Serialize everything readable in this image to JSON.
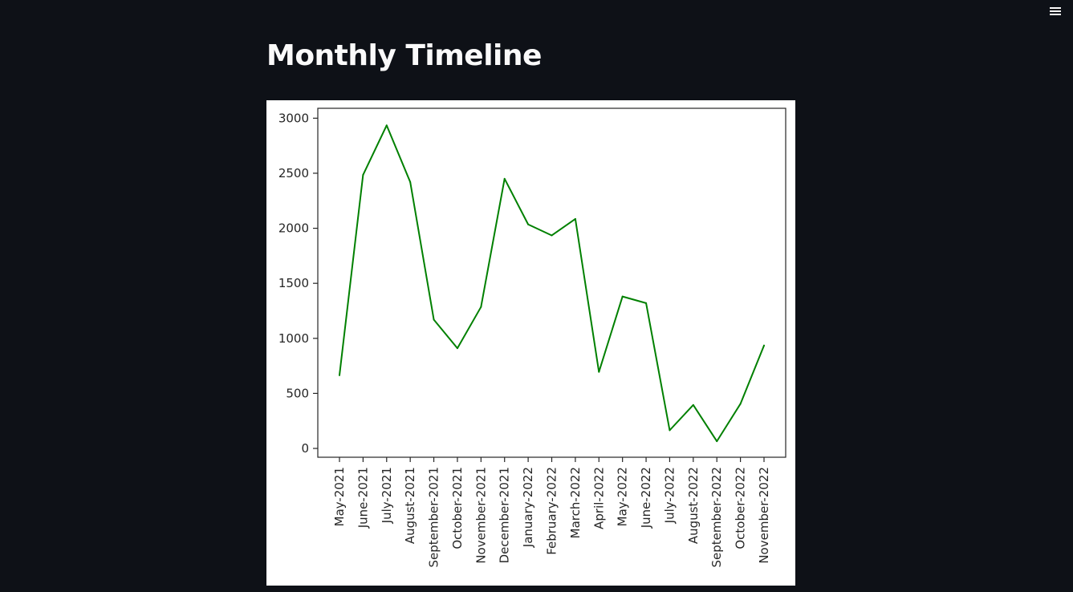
{
  "header": {
    "title": "Monthly Timeline",
    "menu_icon": "hamburger-menu-icon"
  },
  "colors": {
    "background": "#0e1117",
    "title": "#fafafa",
    "line": "#008000",
    "card": "#ffffff"
  },
  "chart_data": {
    "type": "line",
    "title": "",
    "xlabel": "",
    "ylabel": "",
    "x": [
      "May-2021",
      "June-2021",
      "July-2021",
      "August-2021",
      "September-2021",
      "October-2021",
      "November-2021",
      "December-2021",
      "January-2022",
      "February-2022",
      "March-2022",
      "April-2022",
      "May-2022",
      "June-2022",
      "July-2022",
      "August-2022",
      "September-2022",
      "October-2022",
      "November-2022"
    ],
    "series": [
      {
        "color": "#008000",
        "values": [
          665,
          2485,
          2935,
          2420,
          1170,
          910,
          1285,
          2450,
          2035,
          1935,
          2085,
          695,
          1380,
          1320,
          165,
          395,
          65,
          405,
          935
        ]
      }
    ],
    "yticks": [
      0,
      500,
      1000,
      1500,
      2000,
      2500,
      3000
    ],
    "ylim": [
      -80,
      3090
    ],
    "grid": false,
    "legend": "none"
  }
}
